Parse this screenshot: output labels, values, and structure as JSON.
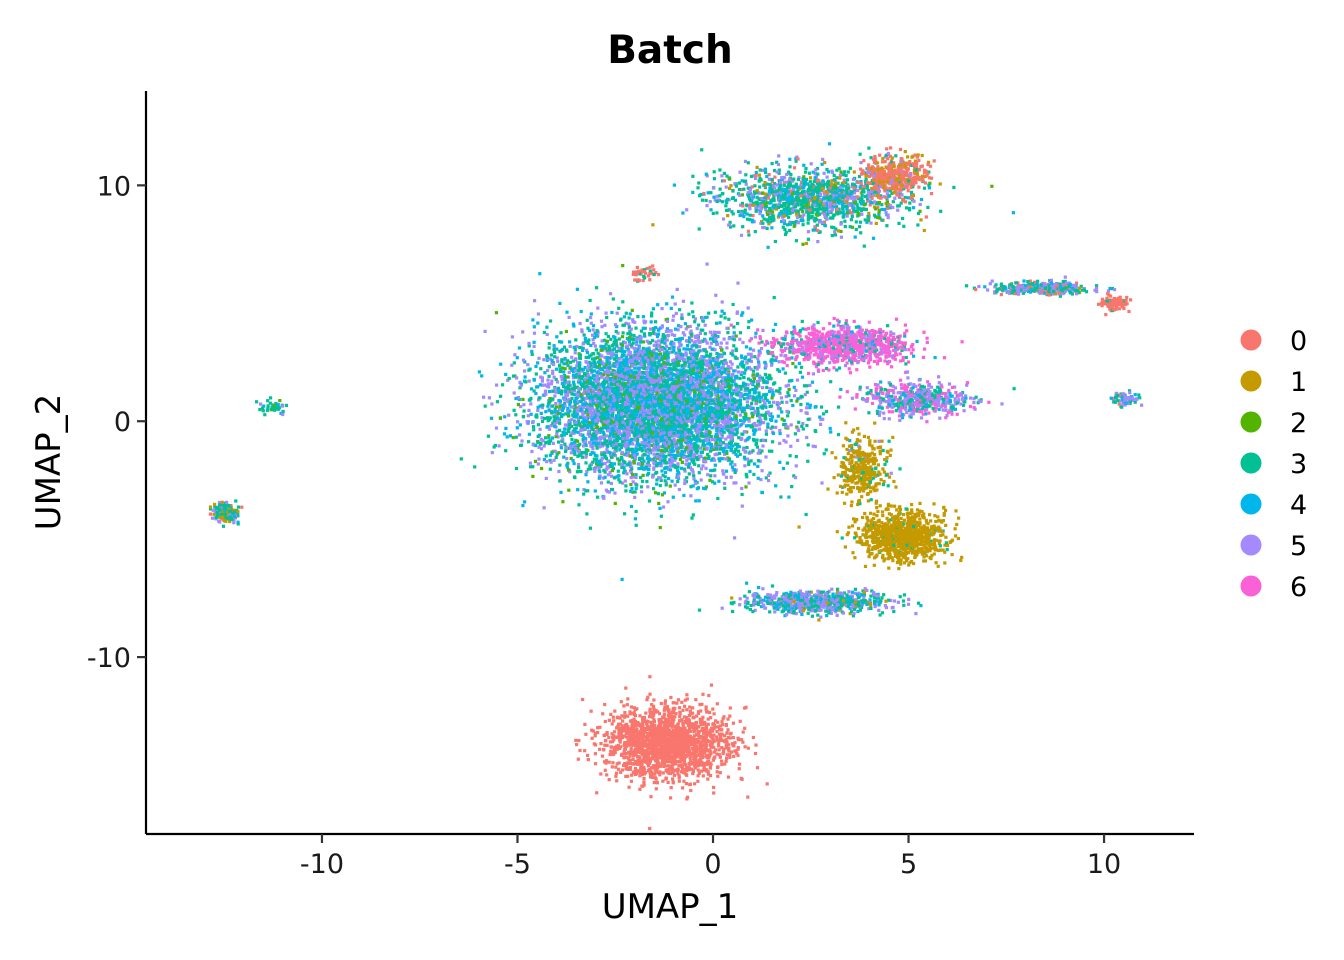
{
  "chart_data": {
    "type": "scatter",
    "title": "Batch",
    "xlabel": "UMAP_1",
    "ylabel": "UMAP_2",
    "xlim": [
      -14.5,
      12.3
    ],
    "ylim": [
      -17.5,
      14
    ],
    "x_ticks": [
      -10,
      -5,
      0,
      5,
      10
    ],
    "y_ticks": [
      -10,
      0,
      10
    ],
    "x_tick_labels": [
      "-10",
      "-5",
      "0",
      "5",
      "10"
    ],
    "y_tick_labels": [
      "-10",
      "0",
      "10"
    ],
    "grid": false,
    "legend_position": "right",
    "series": [
      {
        "name": "0",
        "color": "#F8766D"
      },
      {
        "name": "1",
        "color": "#C49A00"
      },
      {
        "name": "2",
        "color": "#53B400"
      },
      {
        "name": "3",
        "color": "#00C094"
      },
      {
        "name": "4",
        "color": "#00B6EB"
      },
      {
        "name": "5",
        "color": "#A58AFF"
      },
      {
        "name": "6",
        "color": "#FB61D7"
      }
    ],
    "clusters": [
      {
        "id": "main-blob",
        "center": [
          -1.5,
          0.8
        ],
        "spread": [
          3.0,
          3.1
        ],
        "mix": [
          0,
          0,
          0.05,
          0.35,
          0.25,
          0.35,
          0
        ],
        "n": 6500
      },
      {
        "id": "pink-lobe",
        "center": [
          3.3,
          3.3
        ],
        "spread": [
          1.7,
          0.8
        ],
        "mix": [
          0,
          0,
          0,
          0.1,
          0.05,
          0.1,
          0.75
        ],
        "n": 900
      },
      {
        "id": "pink-purple-arm",
        "center": [
          5.2,
          1.0
        ],
        "spread": [
          1.3,
          0.7
        ],
        "mix": [
          0,
          0,
          0,
          0.25,
          0.1,
          0.35,
          0.3
        ],
        "n": 500
      },
      {
        "id": "gold-lobe",
        "center": [
          4.8,
          -4.8
        ],
        "spread": [
          1.1,
          1.0
        ],
        "mix": [
          0,
          0.95,
          0,
          0.05,
          0,
          0,
          0
        ],
        "n": 900
      },
      {
        "id": "gold-stream",
        "center": [
          3.8,
          -2.0
        ],
        "spread": [
          0.6,
          1.4
        ],
        "mix": [
          0,
          0.85,
          0,
          0.1,
          0,
          0.05,
          0
        ],
        "n": 350
      },
      {
        "id": "top-arc",
        "center": [
          2.5,
          9.5
        ],
        "spread": [
          2.4,
          1.3
        ],
        "mix": [
          0.05,
          0.05,
          0.05,
          0.5,
          0.15,
          0.2,
          0
        ],
        "n": 1300
      },
      {
        "id": "top-arc-tip",
        "center": [
          4.6,
          10.5
        ],
        "spread": [
          0.8,
          0.9
        ],
        "mix": [
          0.6,
          0.3,
          0,
          0.05,
          0,
          0.05,
          0
        ],
        "n": 400
      },
      {
        "id": "lower-streak",
        "center": [
          2.6,
          -7.6
        ],
        "spread": [
          1.8,
          0.45
        ],
        "mix": [
          0,
          0.05,
          0,
          0.35,
          0.2,
          0.4,
          0
        ],
        "n": 700
      },
      {
        "id": "salmon-bottom",
        "center": [
          -1.2,
          -13.6
        ],
        "spread": [
          1.6,
          1.5
        ],
        "mix": [
          1,
          0,
          0,
          0,
          0,
          0,
          0
        ],
        "n": 1700
      },
      {
        "id": "right-streak",
        "center": [
          8.4,
          5.7
        ],
        "spread": [
          1.3,
          0.25
        ],
        "mix": [
          0.15,
          0.05,
          0,
          0.35,
          0.15,
          0.3,
          0
        ],
        "n": 350
      },
      {
        "id": "right-streak-tip",
        "center": [
          10.2,
          5.1
        ],
        "spread": [
          0.35,
          0.3
        ],
        "mix": [
          0.9,
          0.05,
          0,
          0.05,
          0,
          0,
          0
        ],
        "n": 120
      },
      {
        "id": "right-small",
        "center": [
          10.5,
          1.0
        ],
        "spread": [
          0.35,
          0.3
        ],
        "mix": [
          0.1,
          0,
          0,
          0.3,
          0.2,
          0.4,
          0
        ],
        "n": 80
      },
      {
        "id": "left-small",
        "center": [
          -12.5,
          -3.8
        ],
        "spread": [
          0.35,
          0.4
        ],
        "mix": [
          0.05,
          0.2,
          0,
          0.4,
          0.15,
          0.2,
          0
        ],
        "n": 160
      },
      {
        "id": "left-thin",
        "center": [
          -11.3,
          0.7
        ],
        "spread": [
          0.35,
          0.3
        ],
        "mix": [
          0,
          0,
          0.1,
          0.6,
          0.2,
          0.1,
          0
        ],
        "n": 40
      },
      {
        "id": "wisp-top",
        "center": [
          -1.8,
          6.3
        ],
        "spread": [
          0.35,
          0.3
        ],
        "mix": [
          0.9,
          0,
          0,
          0.1,
          0,
          0,
          0
        ],
        "n": 40
      }
    ]
  }
}
